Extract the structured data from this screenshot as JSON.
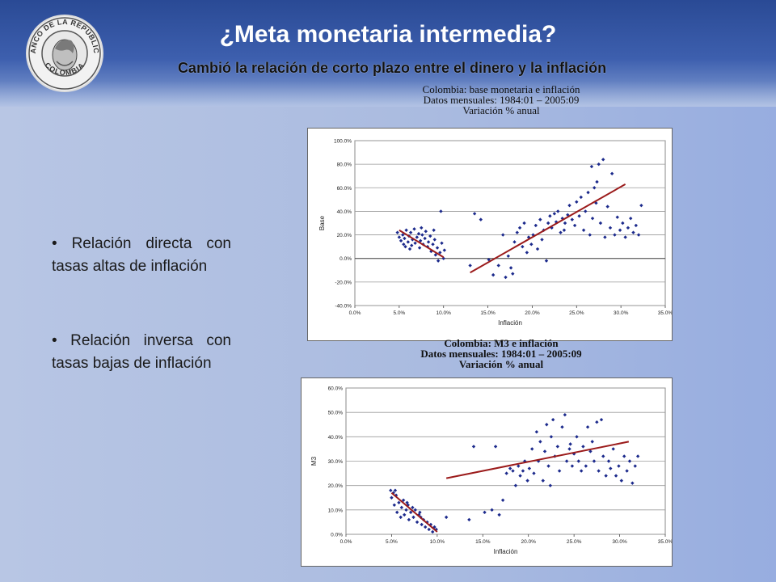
{
  "slide": {
    "title": "¿Meta monetaria intermedia?",
    "subtitle": "Cambió la relación de corto plazo entre el dinero y la inflación",
    "logo_text": "BANCO DE LA REPÚBLICA · COLOMBIA"
  },
  "bullets": [
    "• Relación directa con tasas altas de inflación",
    "• Relación inversa con tasas bajas de inflación"
  ],
  "chart1": {
    "caption_line1": "Colombia: base monetaria e inflación",
    "caption_line2": "Datos mensuales: 1984:01 – 2005:09",
    "caption_line3": "Variación % anual"
  },
  "chart2": {
    "caption_line1": "Colombia: M3 e inflación",
    "caption_line2": "Datos mensuales: 1984:01 – 2005:09",
    "caption_line3": "Variación % anual"
  },
  "chart_data": [
    {
      "type": "scatter",
      "title": "",
      "xlabel": "Inflación",
      "ylabel": "Base",
      "xlim": [
        0,
        35
      ],
      "ylim": [
        -40,
        100
      ],
      "x_ticks": [
        "0.0%",
        "5.0%",
        "10.0%",
        "15.0%",
        "20.0%",
        "25.0%",
        "30.0%",
        "35.0%"
      ],
      "y_ticks": [
        "-40.0%",
        "-20.0%",
        "0.0%",
        "20.0%",
        "40.0%",
        "60.0%",
        "80.0%",
        "100.0%"
      ],
      "point_color": "#1c2a8c",
      "trend_color": "#9b1b1b",
      "trend_lines": [
        {
          "x": [
            5.0,
            10.0
          ],
          "y": [
            24.0,
            1.0
          ]
        },
        {
          "x": [
            13.0,
            30.5
          ],
          "y": [
            -12.0,
            63.0
          ]
        }
      ],
      "points": [
        [
          4.8,
          22
        ],
        [
          5.0,
          18
        ],
        [
          5.2,
          15
        ],
        [
          5.4,
          20
        ],
        [
          5.5,
          12
        ],
        [
          5.6,
          17
        ],
        [
          5.8,
          24
        ],
        [
          6.0,
          14
        ],
        [
          6.1,
          19
        ],
        [
          6.3,
          22
        ],
        [
          6.4,
          11
        ],
        [
          6.5,
          16
        ],
        [
          6.7,
          25
        ],
        [
          6.8,
          13
        ],
        [
          7.0,
          18
        ],
        [
          7.2,
          21
        ],
        [
          7.3,
          9
        ],
        [
          7.4,
          15
        ],
        [
          7.6,
          20
        ],
        [
          7.7,
          12
        ],
        [
          7.9,
          17
        ],
        [
          8.0,
          23
        ],
        [
          8.2,
          10
        ],
        [
          8.3,
          14
        ],
        [
          8.5,
          19
        ],
        [
          8.6,
          6
        ],
        [
          8.8,
          12
        ],
        [
          9.0,
          16
        ],
        [
          9.1,
          3
        ],
        [
          9.3,
          9
        ],
        [
          9.4,
          -2
        ],
        [
          9.6,
          5
        ],
        [
          9.8,
          13
        ],
        [
          10.0,
          0
        ],
        [
          10.1,
          7
        ],
        [
          9.7,
          40
        ],
        [
          8.9,
          24
        ],
        [
          7.5,
          26
        ],
        [
          6.2,
          8
        ],
        [
          5.7,
          10
        ],
        [
          13.0,
          -6
        ],
        [
          13.5,
          38
        ],
        [
          14.2,
          33
        ],
        [
          15.1,
          -1
        ],
        [
          15.6,
          -14
        ],
        [
          16.2,
          -6
        ],
        [
          16.7,
          20
        ],
        [
          17.0,
          -16
        ],
        [
          17.3,
          2
        ],
        [
          17.6,
          -8
        ],
        [
          17.8,
          -13
        ],
        [
          18.0,
          14
        ],
        [
          18.3,
          22
        ],
        [
          18.6,
          26
        ],
        [
          18.9,
          10
        ],
        [
          19.1,
          30
        ],
        [
          19.4,
          5
        ],
        [
          19.6,
          18
        ],
        [
          19.9,
          12
        ],
        [
          20.1,
          20
        ],
        [
          20.4,
          28
        ],
        [
          20.6,
          8
        ],
        [
          20.9,
          33
        ],
        [
          21.1,
          16
        ],
        [
          21.3,
          24
        ],
        [
          21.6,
          -2
        ],
        [
          21.8,
          30
        ],
        [
          22.0,
          36
        ],
        [
          22.2,
          26
        ],
        [
          22.5,
          38
        ],
        [
          22.7,
          31
        ],
        [
          22.9,
          40
        ],
        [
          23.2,
          22
        ],
        [
          23.4,
          34
        ],
        [
          23.7,
          30
        ],
        [
          24.0,
          37
        ],
        [
          24.2,
          45
        ],
        [
          24.5,
          33
        ],
        [
          24.8,
          28
        ],
        [
          25.0,
          48
        ],
        [
          25.3,
          36
        ],
        [
          25.5,
          52
        ],
        [
          25.8,
          24
        ],
        [
          26.0,
          40
        ],
        [
          26.3,
          56
        ],
        [
          26.5,
          20
        ],
        [
          26.8,
          34
        ],
        [
          27.0,
          60
        ],
        [
          27.2,
          47
        ],
        [
          27.5,
          80
        ],
        [
          27.7,
          30
        ],
        [
          28.0,
          84
        ],
        [
          28.2,
          18
        ],
        [
          28.5,
          44
        ],
        [
          28.8,
          26
        ],
        [
          29.0,
          72
        ],
        [
          29.3,
          20
        ],
        [
          29.6,
          35
        ],
        [
          29.9,
          24
        ],
        [
          30.2,
          30
        ],
        [
          30.5,
          18
        ],
        [
          30.8,
          26
        ],
        [
          31.1,
          34
        ],
        [
          31.4,
          22
        ],
        [
          31.7,
          28
        ],
        [
          32.0,
          20
        ],
        [
          32.3,
          45
        ],
        [
          27.3,
          65
        ],
        [
          26.7,
          78
        ],
        [
          23.6,
          24
        ]
      ]
    },
    {
      "type": "scatter",
      "title": "",
      "xlabel": "Inflación",
      "ylabel": "M3",
      "xlim": [
        0,
        35
      ],
      "ylim": [
        0,
        60
      ],
      "x_ticks": [
        "0.0%",
        "5.0%",
        "10.0%",
        "15.0%",
        "20.0%",
        "25.0%",
        "30.0%",
        "35.0%"
      ],
      "y_ticks": [
        "0.0%",
        "10.0%",
        "20.0%",
        "30.0%",
        "40.0%",
        "50.0%",
        "60.0%"
      ],
      "point_color": "#1c2a8c",
      "trend_color": "#9b1b1b",
      "trend_lines": [
        {
          "x": [
            5.0,
            10.0
          ],
          "y": [
            17.0,
            1.0
          ]
        },
        {
          "x": [
            11.0,
            31.0
          ],
          "y": [
            23.0,
            38.0
          ]
        }
      ],
      "points": [
        [
          4.9,
          18
        ],
        [
          5.0,
          15
        ],
        [
          5.2,
          17
        ],
        [
          5.3,
          12
        ],
        [
          5.5,
          16
        ],
        [
          5.6,
          9
        ],
        [
          5.8,
          13
        ],
        [
          6.0,
          7
        ],
        [
          6.1,
          11
        ],
        [
          6.3,
          14
        ],
        [
          6.4,
          8
        ],
        [
          6.6,
          10
        ],
        [
          6.8,
          12
        ],
        [
          6.9,
          6
        ],
        [
          7.1,
          9
        ],
        [
          7.3,
          11
        ],
        [
          7.4,
          7
        ],
        [
          7.6,
          10
        ],
        [
          7.8,
          5
        ],
        [
          8.0,
          8
        ],
        [
          8.1,
          9
        ],
        [
          8.3,
          4
        ],
        [
          8.5,
          6
        ],
        [
          8.7,
          3
        ],
        [
          8.9,
          5
        ],
        [
          9.1,
          2
        ],
        [
          9.3,
          4
        ],
        [
          9.5,
          1
        ],
        [
          9.7,
          3
        ],
        [
          9.9,
          2
        ],
        [
          5.4,
          18
        ],
        [
          6.7,
          13
        ],
        [
          8.2,
          7
        ],
        [
          11.0,
          7
        ],
        [
          13.5,
          6
        ],
        [
          14.0,
          36
        ],
        [
          15.2,
          9
        ],
        [
          16.0,
          10
        ],
        [
          16.4,
          36
        ],
        [
          16.8,
          8
        ],
        [
          17.2,
          14
        ],
        [
          17.6,
          25
        ],
        [
          18.0,
          27
        ],
        [
          18.3,
          26
        ],
        [
          18.6,
          20
        ],
        [
          18.9,
          28
        ],
        [
          19.1,
          24
        ],
        [
          19.4,
          26
        ],
        [
          19.6,
          30
        ],
        [
          19.9,
          22
        ],
        [
          20.1,
          27
        ],
        [
          20.4,
          35
        ],
        [
          20.6,
          25
        ],
        [
          20.9,
          42
        ],
        [
          21.1,
          30
        ],
        [
          21.3,
          38
        ],
        [
          21.6,
          22
        ],
        [
          21.8,
          34
        ],
        [
          22.0,
          45
        ],
        [
          22.2,
          28
        ],
        [
          22.5,
          40
        ],
        [
          22.7,
          47
        ],
        [
          22.9,
          32
        ],
        [
          23.2,
          36
        ],
        [
          23.4,
          26
        ],
        [
          23.7,
          44
        ],
        [
          24.0,
          49
        ],
        [
          24.2,
          30
        ],
        [
          24.5,
          35
        ],
        [
          24.8,
          28
        ],
        [
          25.0,
          33
        ],
        [
          25.3,
          40
        ],
        [
          25.5,
          30
        ],
        [
          25.8,
          26
        ],
        [
          26.0,
          36
        ],
        [
          26.3,
          28
        ],
        [
          26.5,
          44
        ],
        [
          26.8,
          34
        ],
        [
          27.0,
          38
        ],
        [
          27.2,
          30
        ],
        [
          27.5,
          46
        ],
        [
          27.7,
          26
        ],
        [
          28.0,
          47
        ],
        [
          28.2,
          32
        ],
        [
          28.5,
          24
        ],
        [
          28.8,
          30
        ],
        [
          29.0,
          27
        ],
        [
          29.3,
          35
        ],
        [
          29.6,
          24
        ],
        [
          29.9,
          28
        ],
        [
          30.2,
          22
        ],
        [
          30.5,
          32
        ],
        [
          30.8,
          26
        ],
        [
          31.1,
          30
        ],
        [
          31.4,
          21
        ],
        [
          31.7,
          28
        ],
        [
          32.0,
          32
        ],
        [
          22.4,
          20
        ],
        [
          24.6,
          37
        ]
      ]
    }
  ]
}
